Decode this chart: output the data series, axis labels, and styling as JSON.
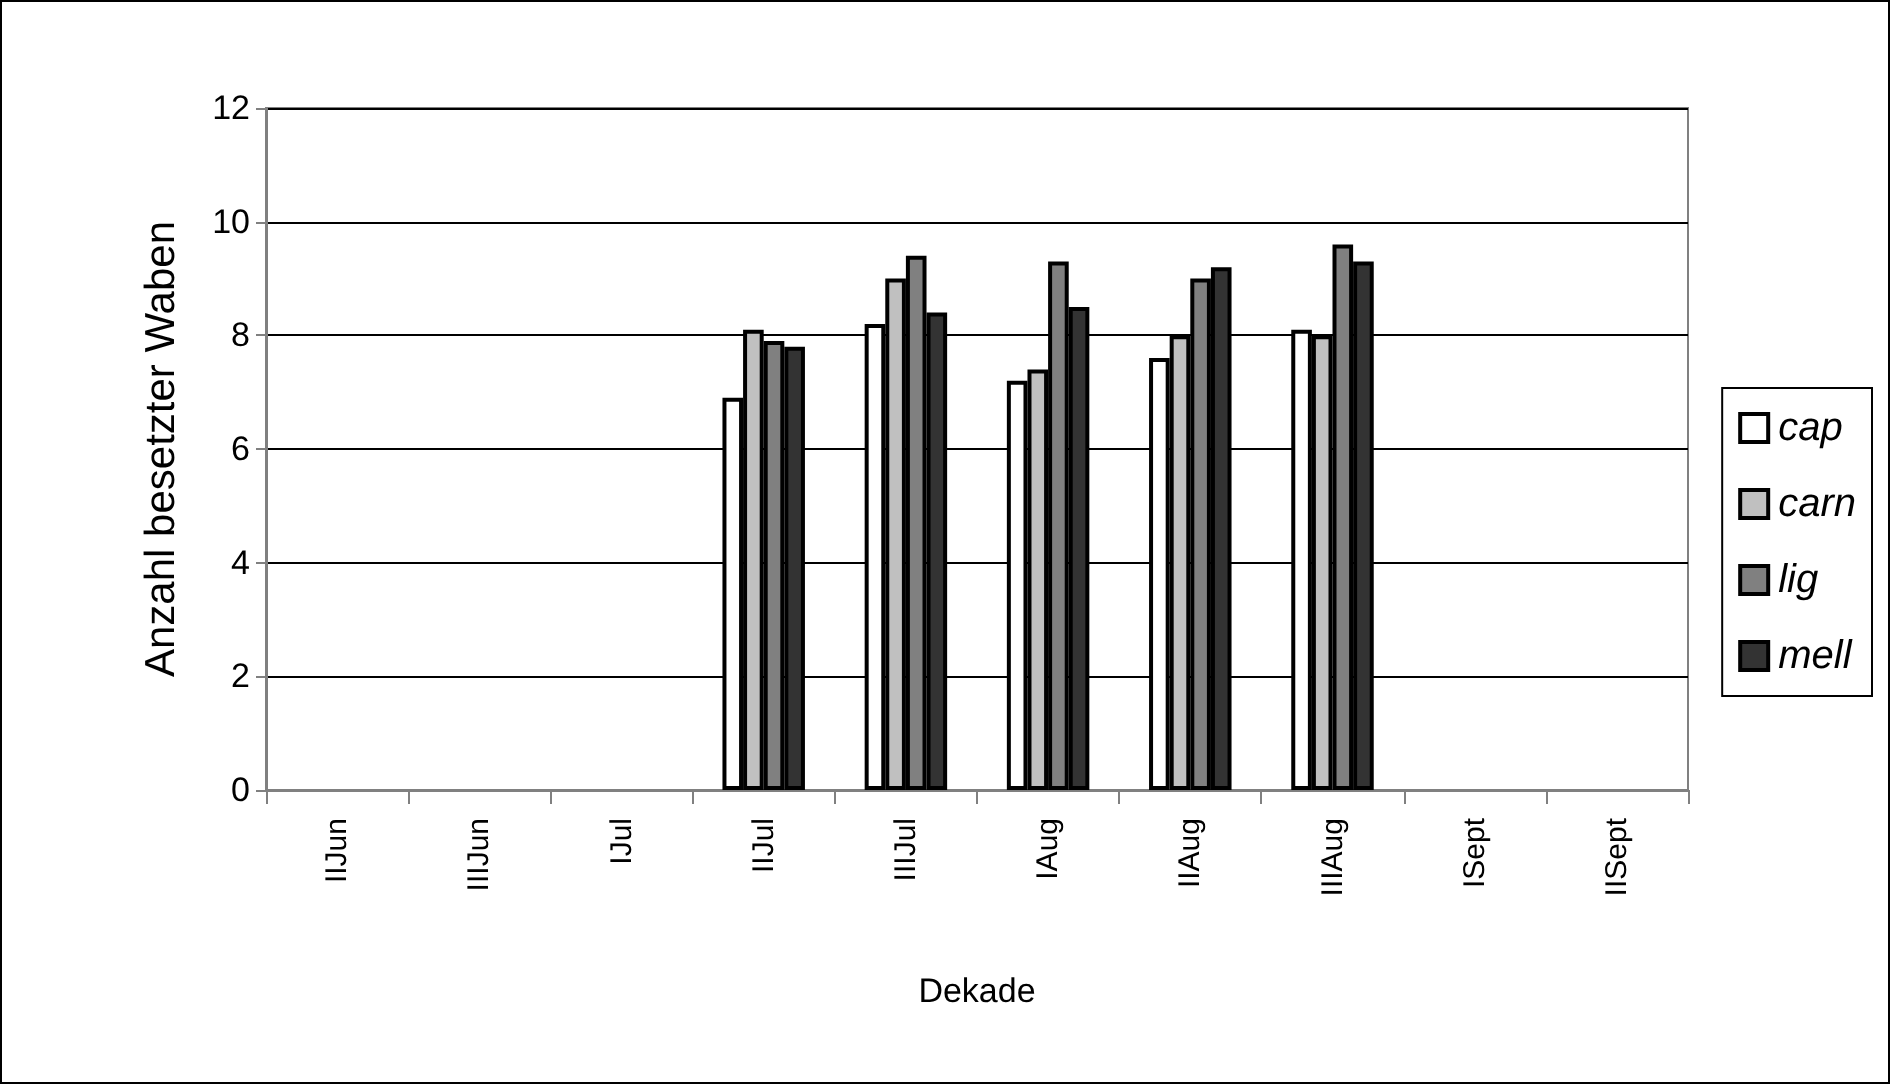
{
  "chart_data": {
    "type": "bar",
    "xlabel": "Dekade",
    "ylabel": "Anzahl besetzter Waben",
    "categories": [
      "IIJun",
      "IIIJun",
      "IJul",
      "IIJul",
      "IIIJul",
      "IAug",
      "IIAug",
      "IIIAug",
      "ISept",
      "IISept"
    ],
    "series": [
      {
        "name": "cap",
        "color": "#ffffff",
        "values": [
          null,
          null,
          null,
          6.9,
          8.2,
          7.2,
          7.6,
          8.1,
          null,
          null
        ]
      },
      {
        "name": "carn",
        "color": "#c0c0c0",
        "values": [
          null,
          null,
          null,
          8.1,
          9.0,
          7.4,
          8.0,
          8.0,
          null,
          null
        ]
      },
      {
        "name": "lig",
        "color": "#808080",
        "values": [
          null,
          null,
          null,
          7.9,
          9.4,
          9.3,
          9.0,
          9.6,
          null,
          null
        ]
      },
      {
        "name": "mell",
        "color": "#333333",
        "values": [
          null,
          null,
          null,
          7.8,
          8.4,
          8.5,
          9.2,
          9.3,
          null,
          null
        ]
      }
    ],
    "ylim": [
      0,
      12
    ],
    "yticks": [
      0,
      2,
      4,
      6,
      8,
      10,
      12
    ],
    "grid": "y",
    "legend": "right"
  }
}
